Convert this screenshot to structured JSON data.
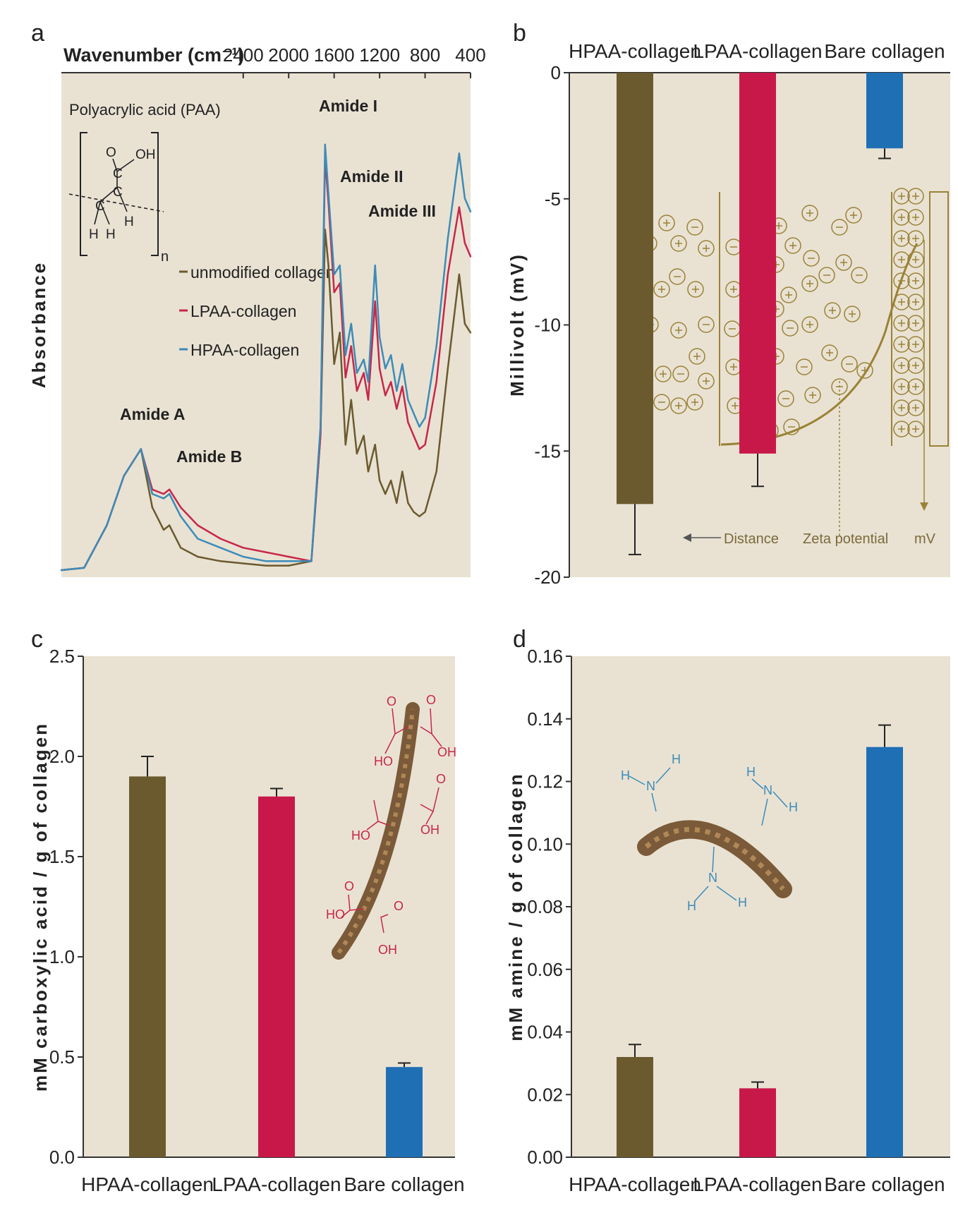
{
  "chart_data": [
    {
      "panel": "a",
      "type": "line",
      "xlabel": "Wavenumber (cm⁻¹)",
      "ylabel": "Absorbance",
      "x_ticks": [
        2400,
        2000,
        1600,
        1200,
        800,
        400
      ],
      "xlim": [
        4000,
        400
      ],
      "ylim": [
        0,
        1
      ],
      "inset_title": "Polyacrylic acid (PAA)",
      "inset_subscript": "n",
      "annotations": [
        {
          "label": "Amide A",
          "x": 3300
        },
        {
          "label": "Amide B",
          "x": 3070
        },
        {
          "label": "Amide I",
          "x": 1650
        },
        {
          "label": "Amide II",
          "x": 1550
        },
        {
          "label": "Amide III",
          "x": 1240
        }
      ],
      "series": [
        {
          "name": "unmodified collagen",
          "color": "#6b5a2e",
          "x": [
            4000,
            3800,
            3600,
            3450,
            3300,
            3200,
            3100,
            3050,
            2950,
            2800,
            2600,
            2400,
            2200,
            2000,
            1800,
            1720,
            1680,
            1650,
            1600,
            1550,
            1500,
            1450,
            1400,
            1340,
            1300,
            1240,
            1200,
            1150,
            1100,
            1050,
            1000,
            950,
            900,
            850,
            800,
            700,
            600,
            500,
            450,
            400
          ],
          "y": [
            0.0,
            0.005,
            0.1,
            0.21,
            0.27,
            0.14,
            0.09,
            0.1,
            0.05,
            0.03,
            0.02,
            0.015,
            0.01,
            0.01,
            0.02,
            0.3,
            0.76,
            0.68,
            0.46,
            0.53,
            0.28,
            0.38,
            0.26,
            0.3,
            0.22,
            0.28,
            0.2,
            0.17,
            0.2,
            0.15,
            0.22,
            0.15,
            0.13,
            0.12,
            0.13,
            0.22,
            0.45,
            0.66,
            0.55,
            0.53
          ]
        },
        {
          "name": "LPAA-collagen",
          "color": "#c8264a",
          "x": [
            4000,
            3800,
            3600,
            3450,
            3300,
            3200,
            3100,
            3050,
            2950,
            2800,
            2600,
            2400,
            2200,
            2000,
            1800,
            1720,
            1680,
            1650,
            1600,
            1550,
            1500,
            1450,
            1400,
            1340,
            1300,
            1240,
            1200,
            1150,
            1100,
            1050,
            1000,
            950,
            900,
            850,
            800,
            700,
            600,
            500,
            450,
            400
          ],
          "y": [
            0.0,
            0.005,
            0.1,
            0.21,
            0.27,
            0.18,
            0.17,
            0.18,
            0.14,
            0.1,
            0.07,
            0.05,
            0.04,
            0.03,
            0.02,
            0.3,
            0.92,
            0.82,
            0.62,
            0.64,
            0.43,
            0.5,
            0.4,
            0.44,
            0.38,
            0.6,
            0.45,
            0.39,
            0.42,
            0.36,
            0.41,
            0.33,
            0.3,
            0.27,
            0.28,
            0.42,
            0.66,
            0.81,
            0.73,
            0.7
          ]
        },
        {
          "name": "HPAA-collagen",
          "color": "#3d8bb8",
          "x": [
            4000,
            3800,
            3600,
            3450,
            3300,
            3200,
            3100,
            3050,
            2950,
            2800,
            2600,
            2400,
            2200,
            2000,
            1800,
            1720,
            1680,
            1650,
            1600,
            1550,
            1500,
            1450,
            1400,
            1340,
            1300,
            1240,
            1200,
            1150,
            1100,
            1050,
            1000,
            950,
            900,
            850,
            800,
            700,
            600,
            500,
            450,
            400
          ],
          "y": [
            0.0,
            0.005,
            0.1,
            0.21,
            0.27,
            0.17,
            0.16,
            0.17,
            0.12,
            0.07,
            0.05,
            0.03,
            0.02,
            0.02,
            0.02,
            0.32,
            0.95,
            0.84,
            0.66,
            0.68,
            0.48,
            0.55,
            0.44,
            0.47,
            0.42,
            0.68,
            0.52,
            0.45,
            0.48,
            0.4,
            0.46,
            0.38,
            0.35,
            0.32,
            0.34,
            0.5,
            0.74,
            0.93,
            0.83,
            0.8
          ]
        }
      ]
    },
    {
      "panel": "b",
      "type": "bar",
      "categories": [
        "HPAA-collagen",
        "LPAA-collagen",
        "Bare collagen"
      ],
      "values": [
        -17.1,
        -15.1,
        -3.0
      ],
      "errors": [
        2.0,
        1.3,
        0.4
      ],
      "colors": [
        "#6b5a2e",
        "#c8184a",
        "#1f6fb5"
      ],
      "ylabel": "Millivolt (mV)",
      "ylim": [
        -20,
        0
      ],
      "y_ticks": [
        0,
        -5,
        -10,
        -15,
        -20
      ],
      "inset_labels": [
        "Distance",
        "Zeta potential",
        "mV"
      ]
    },
    {
      "panel": "c",
      "type": "bar",
      "categories": [
        "HPAA-collagen",
        "LPAA-collagen",
        "Bare collagen"
      ],
      "values": [
        1.9,
        1.8,
        0.45
      ],
      "errors": [
        0.1,
        0.04,
        0.02
      ],
      "colors": [
        "#6b5a2e",
        "#c8184a",
        "#1f6fb5"
      ],
      "ylabel": "mM carboxylic acid / g of collagen",
      "ylim": [
        0,
        2.5
      ],
      "y_ticks": [
        "0.0",
        "0.5",
        "1.0",
        "1.5",
        "2.0",
        "2.5"
      ]
    },
    {
      "panel": "d",
      "type": "bar",
      "categories": [
        "HPAA-collagen",
        "LPAA-collagen",
        "Bare collagen"
      ],
      "values": [
        0.032,
        0.022,
        0.131
      ],
      "errors": [
        0.004,
        0.002,
        0.007
      ],
      "colors": [
        "#6b5a2e",
        "#c8184a",
        "#1f6fb5"
      ],
      "ylabel": "mM amine / g of collagen",
      "ylim": [
        0,
        0.16
      ],
      "y_ticks": [
        "0.00",
        "0.02",
        "0.04",
        "0.06",
        "0.08",
        "0.10",
        "0.12",
        "0.14",
        "0.16"
      ]
    }
  ],
  "colors": {
    "plot_background": "#e9e2d3",
    "zeta_schematic": "#9a8236",
    "carboxyl_chem": "#c8264a",
    "amine_chem": "#3d8bb8"
  }
}
